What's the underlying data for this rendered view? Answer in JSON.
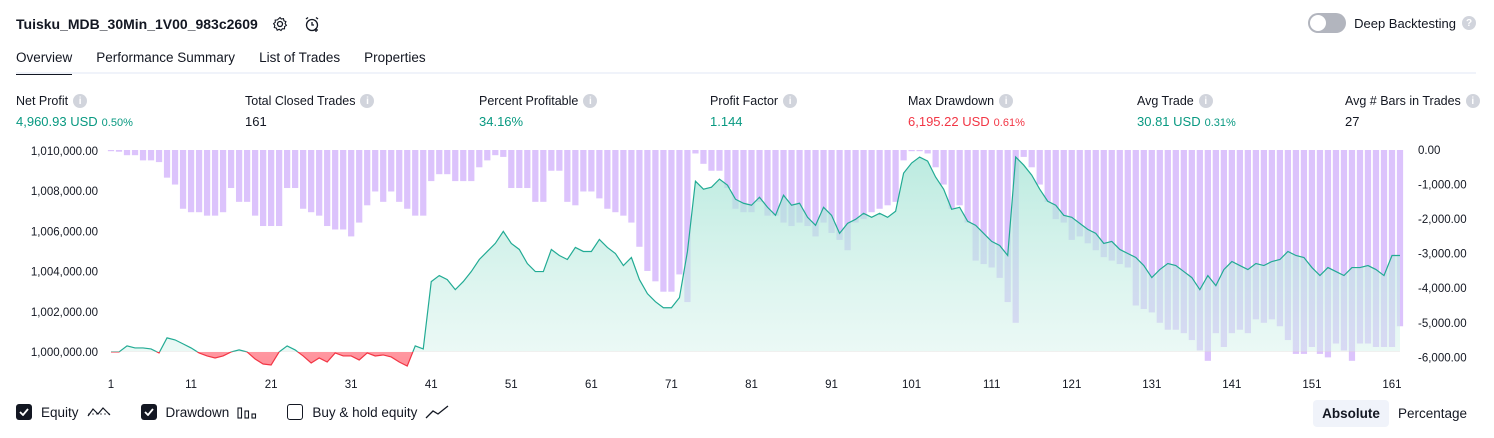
{
  "header": {
    "title": "Tuisku_MDB_30Min_1V00_983c2609",
    "settings_icon": "gear-icon",
    "alert_icon": "alarm-clock-icon"
  },
  "deep_backtesting": {
    "label": "Deep Backtesting",
    "enabled": false,
    "help_icon": "question-icon"
  },
  "tabs": [
    {
      "label": "Overview",
      "active": true
    },
    {
      "label": "Performance Summary",
      "active": false
    },
    {
      "label": "List of Trades",
      "active": false
    },
    {
      "label": "Properties",
      "active": false
    }
  ],
  "stats": {
    "net_profit": {
      "label": "Net Profit",
      "value": "4,960.93 USD",
      "pct": "0.50%"
    },
    "total_closed_trades": {
      "label": "Total Closed Trades",
      "value": "161"
    },
    "percent_profitable": {
      "label": "Percent Profitable",
      "value": "34.16%"
    },
    "profit_factor": {
      "label": "Profit Factor",
      "value": "1.144"
    },
    "max_drawdown": {
      "label": "Max Drawdown",
      "value": "6,195.22 USD",
      "pct": "0.61%"
    },
    "avg_trade": {
      "label": "Avg Trade",
      "value": "30.81 USD",
      "pct": "0.31%"
    },
    "avg_bars": {
      "label": "Avg # Bars in Trades",
      "value": "27"
    }
  },
  "legend": {
    "equity": {
      "label": "Equity",
      "checked": true,
      "icon": "equity-line-icon"
    },
    "drawdown": {
      "label": "Drawdown",
      "checked": true,
      "icon": "bars-icon"
    },
    "buy_hold": {
      "label": "Buy & hold equity",
      "checked": false,
      "icon": "trend-line-icon"
    }
  },
  "view_toggle": {
    "absolute": "Absolute",
    "percentage": "Percentage",
    "selected": "Absolute"
  },
  "colors": {
    "green": "#089981",
    "red": "#f23645",
    "equity_line": "#22ab94",
    "drawdown_bar": "#dcc3fc",
    "drawdown_overlap": "#b8b8ec"
  },
  "chart_data": {
    "type": "area",
    "x_ticks": [
      1,
      11,
      21,
      31,
      41,
      51,
      61,
      71,
      81,
      91,
      101,
      111,
      121,
      131,
      141,
      151,
      161
    ],
    "x_range": [
      1,
      162
    ],
    "left_axis": {
      "ticks": [
        "1,010,000.00",
        "1,008,000.00",
        "1,006,000.00",
        "1,004,000.00",
        "1,002,000.00",
        "1,000,000.00"
      ],
      "ylim": [
        999300,
        1010050
      ]
    },
    "right_axis": {
      "ticks": [
        "0.00",
        "-1,000.00",
        "-2,000.00",
        "-3,000.00",
        "-4,000.00",
        "-5,000.00",
        "-6,000.00"
      ],
      "ylim": [
        -6250,
        0
      ]
    },
    "baseline": 1000000,
    "series": [
      {
        "name": "Equity",
        "values": [
          1000000,
          1000000,
          1000300,
          1000200,
          1000200,
          1000150,
          999950,
          1000700,
          1000600,
          1000400,
          1000200,
          999950,
          999800,
          999700,
          999800,
          1000000,
          1000100,
          1000000,
          999650,
          999400,
          999350,
          1000000,
          1000300,
          1000100,
          999800,
          999450,
          999700,
          999500,
          999950,
          999800,
          999800,
          999600,
          999950,
          999800,
          999850,
          999750,
          999500,
          999300,
          1000300,
          1000150,
          1003500,
          1003800,
          1003600,
          1003100,
          1003500,
          1004000,
          1004600,
          1005000,
          1005400,
          1006000,
          1005400,
          1005100,
          1004400,
          1004000,
          1004000,
          1005100,
          1004800,
          1004600,
          1005200,
          1005000,
          1005000,
          1005600,
          1005200,
          1004900,
          1004300,
          1004700,
          1003600,
          1002900,
          1002500,
          1002200,
          1002200,
          1002700,
          1005000,
          1008500,
          1008100,
          1008200,
          1008600,
          1008300,
          1007600,
          1007400,
          1007300,
          1007700,
          1007200,
          1006800,
          1007800,
          1007300,
          1007400,
          1006700,
          1006300,
          1007200,
          1006800,
          1005900,
          1006400,
          1006600,
          1006900,
          1006700,
          1006900,
          1006700,
          1007000,
          1008900,
          1009400,
          1009700,
          1009500,
          1008700,
          1008100,
          1007100,
          1007200,
          1006500,
          1006300,
          1005900,
          1005500,
          1005300,
          1004800,
          1009700,
          1009300,
          1008800,
          1008100,
          1007500,
          1007300,
          1006800,
          1006700,
          1006400,
          1006100,
          1005900,
          1005400,
          1005500,
          1005100,
          1004900,
          1004700,
          1004300,
          1003700,
          1004100,
          1004400,
          1004300,
          1004000,
          1003700,
          1003100,
          1003800,
          1003300,
          1004100,
          1004500,
          1004300,
          1004100,
          1004400,
          1004300,
          1004500,
          1004600,
          1005000,
          1004800,
          1004700,
          1004200,
          1003800,
          1004200,
          1004000,
          1003800,
          1004200,
          1004200,
          1004300,
          1004100,
          1003800,
          1004800,
          1004800
        ]
      },
      {
        "name": "Drawdown",
        "values": [
          0,
          -50,
          -150,
          -150,
          -300,
          -300,
          -350,
          -800,
          -1000,
          -1700,
          -1800,
          -1800,
          -1900,
          -1900,
          -1800,
          -1100,
          -1500,
          -1500,
          -1900,
          -2200,
          -2200,
          -2200,
          -1100,
          -1100,
          -1700,
          -1800,
          -1900,
          -2200,
          -2300,
          -2300,
          -2500,
          -2100,
          -1600,
          -1200,
          -1500,
          -1200,
          -1500,
          -1700,
          -1900,
          -1900,
          -900,
          -700,
          -700,
          -900,
          -900,
          -900,
          -500,
          -300,
          -150,
          -200,
          -1100,
          -1100,
          -1100,
          -1500,
          -1500,
          -600,
          -600,
          -1500,
          -1600,
          -1200,
          -1200,
          -1400,
          -1700,
          -1800,
          -1900,
          -2100,
          -2800,
          -3500,
          -3800,
          -4100,
          -4100,
          -3600,
          -4400,
          -100,
          -400,
          -600,
          -600,
          -1100,
          -1700,
          -1800,
          -1800,
          -1500,
          -1900,
          -1900,
          -2100,
          -2200,
          -2100,
          -2200,
          -2500,
          -2100,
          -2400,
          -2600,
          -2900,
          -2100,
          -2000,
          -1800,
          -1700,
          -1600,
          -1500,
          -300,
          0,
          0,
          -100,
          -500,
          -1000,
          -1700,
          -1600,
          -2100,
          -3200,
          -3300,
          -3400,
          -3700,
          -4400,
          -5000,
          -200,
          -500,
          -1000,
          -1500,
          -2000,
          -2100,
          -2600,
          -2500,
          -2700,
          -2900,
          -3100,
          -3200,
          -3300,
          -3400,
          -4500,
          -4600,
          -4700,
          -5000,
          -5200,
          -5200,
          -5300,
          -5500,
          -5800,
          -6100,
          -5300,
          -5700,
          -5300,
          -5200,
          -5300,
          -4900,
          -5000,
          -4900,
          -5100,
          -5500,
          -5900,
          -5900,
          -5700,
          -5900,
          -6000,
          -5600,
          -5800,
          -6100,
          -5600,
          -5600,
          -5700,
          -5700,
          -5700,
          -5100
        ]
      }
    ]
  }
}
